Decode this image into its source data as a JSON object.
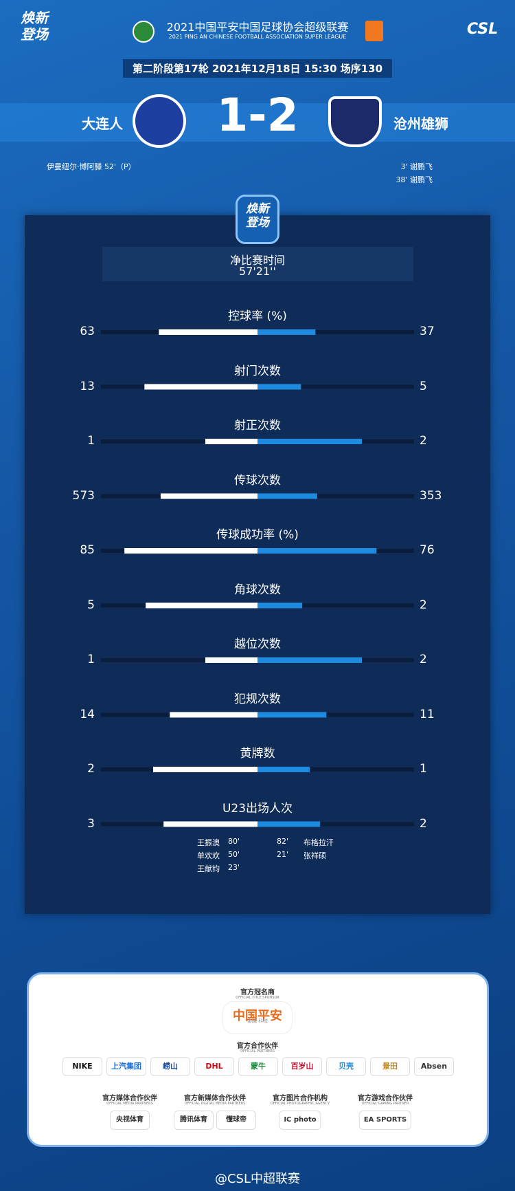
{
  "header": {
    "logo_top": "焕新",
    "logo_bottom": "登场",
    "title": "2021中国平安中国足球协会超级联赛",
    "subtitle": "2021 PING AN CHINESE FOOTBALL ASSOCIATION SUPER LEAGUE",
    "csl": "CSL"
  },
  "match": {
    "info": "第二阶段第17轮  2021年12月18日 15:30 场序130",
    "home": "大连人",
    "away": "沧州雄狮",
    "score": "1-2",
    "home_scorers": [
      "伊曼纽尔·博阿滕  52'（P）"
    ],
    "away_scorers": [
      "3'  谢鹏飞",
      "38'  谢鹏飞"
    ]
  },
  "net_time": {
    "label": "净比赛时间",
    "value": "57'21''"
  },
  "stats": [
    {
      "label": "控球率 (%)",
      "home": 63,
      "away": 37,
      "percent": true
    },
    {
      "label": "射门次数",
      "home": 13,
      "away": 5,
      "percent": false
    },
    {
      "label": "射正次数",
      "home": 1,
      "away": 2,
      "percent": false
    },
    {
      "label": "传球次数",
      "home": 573,
      "away": 353,
      "percent": false
    },
    {
      "label": "传球成功率 (%)",
      "home": 85,
      "away": 76,
      "percent": true
    },
    {
      "label": "角球次数",
      "home": 5,
      "away": 2,
      "percent": false
    },
    {
      "label": "越位次数",
      "home": 1,
      "away": 2,
      "percent": false
    },
    {
      "label": "犯规次数",
      "home": 14,
      "away": 11,
      "percent": false
    },
    {
      "label": "黄牌数",
      "home": 2,
      "away": 1,
      "percent": false
    },
    {
      "label": "U23出场人次",
      "home": 3,
      "away": 2,
      "percent": false
    }
  ],
  "u23": {
    "home": [
      {
        "name": "王振澳",
        "minute": "80'"
      },
      {
        "name": "单欢欢",
        "minute": "50'"
      },
      {
        "name": "王献钧",
        "minute": "23'"
      }
    ],
    "away": [
      {
        "name": "布格拉汗",
        "minute": "82'"
      },
      {
        "name": "张祥硕",
        "minute": "21'"
      }
    ]
  },
  "sponsors": {
    "title_sponsor": {
      "label": "官方冠名商",
      "sub": "OFFICIAL TITLE SPONSOR",
      "name": "中国平安",
      "tag": "金融·科技"
    },
    "partners": {
      "label": "官方合作伙伴",
      "sub": "OFFICIAL PARTNERS",
      "names": [
        "NIKE",
        "上汽集团",
        "崂山",
        "DHL",
        "蒙牛",
        "百岁山",
        "贝壳",
        "景田",
        "Absen"
      ]
    },
    "groups": [
      {
        "label": "官方媒体合作伙伴",
        "sub": "OFFICIAL MEDIA PARTNERS",
        "names": [
          "央视体育"
        ]
      },
      {
        "label": "官方新媒体合作伙伴",
        "sub": "OFFICIAL DIGITAL MEDIA PARTNERS",
        "names": [
          "腾讯体育",
          "懂球帝"
        ]
      },
      {
        "label": "官方图片合作机构",
        "sub": "OFFICIAL PHOTOGRAPHIC AGENCY",
        "names": [
          "IC photo"
        ]
      },
      {
        "label": "官方游戏合作伙伴",
        "sub": "OFFICIAL GAMING PARTNER",
        "names": [
          "EA SPORTS"
        ]
      }
    ]
  },
  "footer": "@CSL中超联赛"
}
